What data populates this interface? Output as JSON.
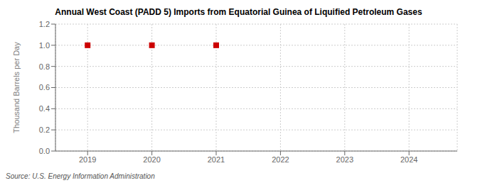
{
  "chart_data": {
    "type": "scatter",
    "title": "Annual West Coast (PADD 5) Imports from Equatorial Guinea of Liquified Petroleum Gases",
    "y_label": "Thousand Barrels per Day",
    "annotations": [
      "Source: U.S. Energy Information Administration"
    ],
    "x": [
      2019,
      2020,
      2021
    ],
    "values": [
      1.0,
      1.0,
      1.0
    ],
    "color": "#cc0000",
    "marker": "square",
    "xlim": [
      2018.5,
      2024.75
    ],
    "ylim": [
      0.0,
      1.2
    ],
    "xticks": [
      2019,
      2020,
      2021,
      2022,
      2023,
      2024
    ],
    "yticks": [
      {
        "value": 0.0,
        "label": "0.0"
      },
      0.2,
      0.4,
      0.6,
      0.8,
      {
        "value": 1.0,
        "label": "1.0"
      },
      1.2
    ],
    "grid": true
  }
}
